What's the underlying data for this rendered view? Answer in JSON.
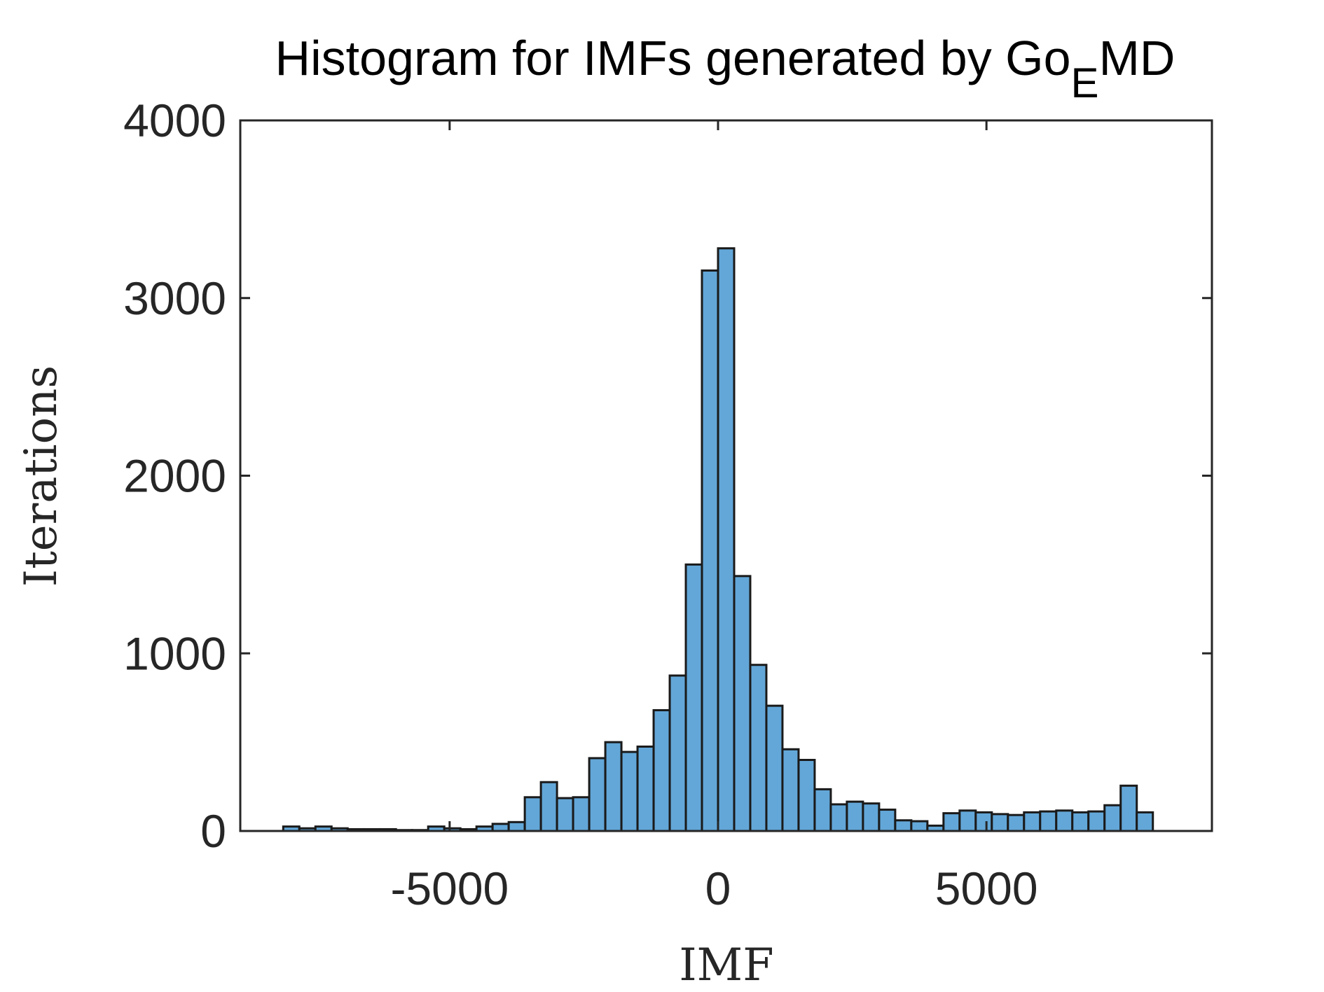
{
  "chart_data": {
    "type": "histogram",
    "title": "Histogram for IMFs generated by Go",
    "title_subscript": "E",
    "title_suffix": "MD",
    "x_label": "IMF",
    "y_label": "Iterations",
    "bins": [
      -8100,
      -7800,
      -7500,
      -7200,
      -6900,
      -6600,
      -6300,
      -6000,
      -5700,
      -5400,
      -5100,
      -4800,
      -4500,
      -4200,
      -3900,
      -3600,
      -3300,
      -3000,
      -2700,
      -2400,
      -2100,
      -1800,
      -1500,
      -1200,
      -900,
      -600,
      -300,
      0,
      300,
      600,
      900,
      1200,
      1500,
      1800,
      2100,
      2400,
      2700,
      3000,
      3300,
      3600,
      3900,
      4200,
      4500,
      4800,
      5100,
      5400,
      5700,
      6000,
      6300,
      6600,
      6900,
      7200,
      7500,
      7800,
      8100
    ],
    "values": [
      25,
      15,
      25,
      15,
      10,
      10,
      10,
      5,
      5,
      25,
      15,
      10,
      25,
      40,
      50,
      190,
      275,
      185,
      190,
      410,
      500,
      445,
      475,
      680,
      875,
      1500,
      3155,
      3280,
      1435,
      935,
      705,
      460,
      400,
      235,
      150,
      165,
      155,
      120,
      60,
      55,
      30,
      100,
      115,
      105,
      95,
      90,
      105,
      110,
      115,
      105,
      110,
      145,
      255,
      105
    ],
    "color": "#63a7d8",
    "edge_color": "#1a1a1a",
    "xlim": [
      -8900,
      9200
    ],
    "ylim": [
      0,
      4000
    ],
    "xticks": [
      -5000,
      0,
      5000
    ],
    "yticks": [
      0,
      1000,
      2000,
      3000,
      4000
    ]
  }
}
